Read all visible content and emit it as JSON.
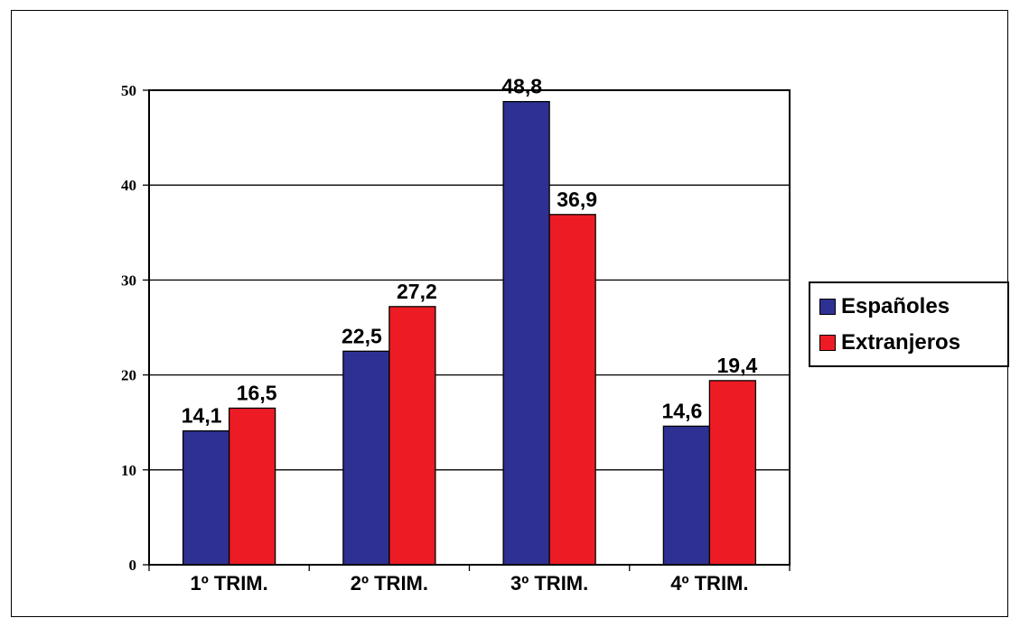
{
  "chart_data": {
    "type": "bar",
    "categories": [
      "1º TRIM.",
      "2º TRIM.",
      "3º TRIM.",
      "4º TRIM."
    ],
    "series": [
      {
        "name": "Españoles",
        "values": [
          14.1,
          22.5,
          48.8,
          14.6
        ],
        "labels": [
          "14,1",
          "22,5",
          "48,8",
          "14,6"
        ],
        "color": "#2e3192"
      },
      {
        "name": "Extranjeros",
        "values": [
          16.5,
          27.2,
          36.9,
          19.4
        ],
        "labels": [
          "16,5",
          "27,2",
          "36,9",
          "19,4"
        ],
        "color": "#ed1c24"
      }
    ],
    "y_ticks": [
      "0",
      "10",
      "20",
      "30",
      "40",
      "50"
    ],
    "ylim": [
      0,
      50
    ],
    "grid": true,
    "legend_position": "right"
  }
}
